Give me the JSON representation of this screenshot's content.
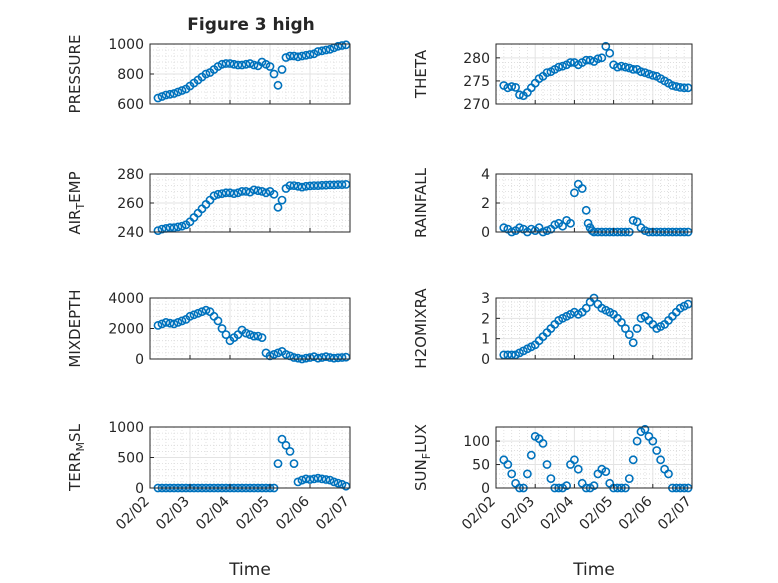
{
  "figure": {
    "title": "Figure 3 high",
    "xlabel": "Time",
    "x_ticks": [
      "02/02",
      "02/03",
      "02/04",
      "02/05",
      "02/06",
      "02/07"
    ],
    "marker_color": "#0072bd"
  },
  "chart_data": [
    {
      "type": "scatter",
      "ylabel": "PRESSURE",
      "ylim": [
        600,
        1000
      ],
      "yticks": [
        "600",
        "800",
        "1000"
      ],
      "xlim": [
        1,
        6
      ],
      "grid": true,
      "x": [
        1.2,
        1.3,
        1.4,
        1.5,
        1.6,
        1.7,
        1.8,
        1.9,
        2.0,
        2.1,
        2.2,
        2.3,
        2.4,
        2.5,
        2.6,
        2.7,
        2.8,
        2.9,
        3.0,
        3.1,
        3.2,
        3.3,
        3.4,
        3.5,
        3.6,
        3.7,
        3.8,
        3.9,
        4.0,
        4.1,
        4.2,
        4.3,
        4.4,
        4.5,
        4.6,
        4.7,
        4.8,
        4.9,
        5.0,
        5.1,
        5.2,
        5.3,
        5.4,
        5.5,
        5.6,
        5.7,
        5.8,
        5.9
      ],
      "y": [
        640,
        650,
        660,
        665,
        670,
        680,
        690,
        700,
        720,
        740,
        760,
        780,
        800,
        810,
        830,
        850,
        865,
        870,
        870,
        865,
        860,
        860,
        865,
        870,
        860,
        855,
        880,
        865,
        850,
        800,
        725,
        830,
        910,
        920,
        920,
        915,
        920,
        925,
        930,
        935,
        950,
        955,
        960,
        965,
        975,
        985,
        990,
        995
      ]
    },
    {
      "type": "scatter",
      "ylabel": "THETA",
      "ylim": [
        270,
        283
      ],
      "yticks": [
        "270",
        "275",
        "280"
      ],
      "xlim": [
        1,
        6
      ],
      "grid": true,
      "x": [
        1.2,
        1.3,
        1.4,
        1.5,
        1.6,
        1.7,
        1.8,
        1.9,
        2.0,
        2.1,
        2.2,
        2.3,
        2.4,
        2.5,
        2.6,
        2.7,
        2.8,
        2.9,
        3.0,
        3.1,
        3.2,
        3.3,
        3.4,
        3.5,
        3.6,
        3.7,
        3.8,
        3.9,
        4.0,
        4.1,
        4.2,
        4.3,
        4.4,
        4.5,
        4.6,
        4.7,
        4.8,
        4.9,
        5.0,
        5.1,
        5.2,
        5.3,
        5.4,
        5.5,
        5.6,
        5.7,
        5.8,
        5.9
      ],
      "y": [
        274,
        273.5,
        273.8,
        273.6,
        272,
        271.8,
        272.5,
        273.5,
        274.5,
        275.5,
        276,
        276.8,
        277,
        277.5,
        278,
        278.2,
        278.5,
        279,
        279,
        278.5,
        279,
        279.5,
        279.5,
        279.2,
        279.8,
        280,
        282.5,
        281,
        278.5,
        278,
        278.2,
        278,
        277.8,
        277.5,
        277.5,
        277,
        276.8,
        276.5,
        276.2,
        276,
        275.5,
        275,
        274.5,
        274,
        273.8,
        273.6,
        273.5,
        273.5
      ]
    },
    {
      "type": "scatter",
      "ylabel": "AIR_TEMP",
      "ylim": [
        240,
        280
      ],
      "yticks": [
        "240",
        "260",
        "280"
      ],
      "xlim": [
        1,
        6
      ],
      "grid": true,
      "x": [
        1.2,
        1.3,
        1.4,
        1.5,
        1.6,
        1.7,
        1.8,
        1.9,
        2.0,
        2.1,
        2.2,
        2.3,
        2.4,
        2.5,
        2.6,
        2.7,
        2.8,
        2.9,
        3.0,
        3.1,
        3.2,
        3.3,
        3.4,
        3.5,
        3.6,
        3.7,
        3.8,
        3.9,
        4.0,
        4.1,
        4.2,
        4.3,
        4.4,
        4.5,
        4.6,
        4.7,
        4.8,
        4.9,
        5.0,
        5.1,
        5.2,
        5.3,
        5.4,
        5.5,
        5.6,
        5.7,
        5.8,
        5.9
      ],
      "y": [
        241,
        242,
        242.5,
        243,
        243,
        243.5,
        244,
        245,
        247,
        250,
        253,
        256,
        259,
        262,
        265,
        266,
        266.5,
        267,
        267,
        266.5,
        267,
        268,
        268,
        267.5,
        269,
        268.5,
        268,
        267,
        268,
        266,
        257,
        262,
        270,
        272,
        272,
        271.5,
        271,
        271.5,
        271.8,
        272,
        272,
        272.2,
        272.3,
        272.5,
        272.5,
        272.6,
        272.7,
        272.8
      ]
    },
    {
      "type": "scatter",
      "ylabel": "RAINFALL",
      "ylim": [
        0,
        4
      ],
      "yticks": [
        "0",
        "2",
        "4"
      ],
      "xlim": [
        1,
        6
      ],
      "grid": true,
      "x": [
        1.2,
        1.3,
        1.4,
        1.5,
        1.6,
        1.7,
        1.8,
        1.9,
        2.0,
        2.1,
        2.2,
        2.3,
        2.4,
        2.5,
        2.6,
        2.7,
        2.8,
        2.9,
        3.0,
        3.1,
        3.2,
        3.3,
        3.35,
        3.4,
        3.45,
        3.5,
        3.6,
        3.7,
        3.8,
        3.9,
        4.0,
        4.1,
        4.2,
        4.3,
        4.4,
        4.5,
        4.6,
        4.7,
        4.8,
        4.9,
        5.0,
        5.1,
        5.2,
        5.3,
        5.4,
        5.5,
        5.6,
        5.7,
        5.8,
        5.9
      ],
      "y": [
        0.3,
        0.2,
        0,
        0.1,
        0.3,
        0.2,
        0,
        0.2,
        0.1,
        0.3,
        0,
        0.1,
        0.2,
        0.5,
        0.6,
        0.4,
        0.8,
        0.6,
        2.7,
        3.3,
        3.0,
        1.5,
        0.6,
        0.3,
        0.1,
        0,
        0,
        0,
        0,
        0,
        0,
        0,
        0,
        0,
        0,
        0.8,
        0.7,
        0.3,
        0.1,
        0,
        0,
        0,
        0,
        0,
        0,
        0,
        0,
        0,
        0,
        0
      ]
    },
    {
      "type": "scatter",
      "ylabel": "MIXDEPTH",
      "ylim": [
        0,
        4000
      ],
      "yticks": [
        "0",
        "2000",
        "4000"
      ],
      "xlim": [
        1,
        6
      ],
      "grid": true,
      "x": [
        1.2,
        1.3,
        1.4,
        1.5,
        1.6,
        1.7,
        1.8,
        1.9,
        2.0,
        2.1,
        2.2,
        2.3,
        2.4,
        2.5,
        2.6,
        2.7,
        2.8,
        2.9,
        3.0,
        3.1,
        3.2,
        3.3,
        3.4,
        3.5,
        3.6,
        3.7,
        3.8,
        3.9,
        4.0,
        4.1,
        4.2,
        4.3,
        4.4,
        4.5,
        4.6,
        4.7,
        4.8,
        4.9,
        5.0,
        5.1,
        5.2,
        5.3,
        5.4,
        5.5,
        5.6,
        5.7,
        5.8,
        5.9
      ],
      "y": [
        2200,
        2300,
        2400,
        2350,
        2300,
        2400,
        2500,
        2600,
        2800,
        2900,
        3000,
        3100,
        3200,
        3100,
        2800,
        2500,
        2000,
        1600,
        1200,
        1400,
        1600,
        1900,
        1700,
        1600,
        1500,
        1500,
        1400,
        400,
        200,
        300,
        400,
        500,
        300,
        200,
        100,
        50,
        0,
        50,
        100,
        150,
        50,
        100,
        150,
        100,
        50,
        80,
        100,
        120
      ]
    },
    {
      "type": "scatter",
      "ylabel": "H2OMIXRA",
      "ylim": [
        0,
        3
      ],
      "yticks": [
        "0",
        "1",
        "2",
        "3"
      ],
      "xlim": [
        1,
        6
      ],
      "grid": true,
      "x": [
        1.2,
        1.3,
        1.4,
        1.5,
        1.6,
        1.7,
        1.8,
        1.9,
        2.0,
        2.1,
        2.2,
        2.3,
        2.4,
        2.5,
        2.6,
        2.7,
        2.8,
        2.9,
        3.0,
        3.1,
        3.2,
        3.3,
        3.4,
        3.5,
        3.6,
        3.7,
        3.8,
        3.9,
        4.0,
        4.1,
        4.2,
        4.3,
        4.4,
        4.5,
        4.6,
        4.7,
        4.8,
        4.9,
        5.0,
        5.1,
        5.2,
        5.3,
        5.4,
        5.5,
        5.6,
        5.7,
        5.8,
        5.9
      ],
      "y": [
        0.2,
        0.2,
        0.2,
        0.2,
        0.3,
        0.4,
        0.5,
        0.6,
        0.7,
        0.9,
        1.1,
        1.3,
        1.5,
        1.7,
        1.9,
        2.0,
        2.1,
        2.2,
        2.3,
        2.2,
        2.3,
        2.5,
        2.8,
        3.0,
        2.7,
        2.5,
        2.4,
        2.3,
        2.2,
        2.0,
        1.8,
        1.5,
        1.2,
        0.8,
        1.5,
        2.0,
        2.1,
        1.9,
        1.7,
        1.5,
        1.6,
        1.7,
        1.9,
        2.1,
        2.3,
        2.5,
        2.6,
        2.7
      ]
    },
    {
      "type": "scatter",
      "ylabel": "TERR_MSL",
      "ylim": [
        0,
        1000
      ],
      "yticks": [
        "0",
        "500",
        "1000"
      ],
      "xlim": [
        1,
        6
      ],
      "grid": true,
      "x": [
        1.2,
        1.3,
        1.4,
        1.5,
        1.6,
        1.7,
        1.8,
        1.9,
        2.0,
        2.1,
        2.2,
        2.3,
        2.4,
        2.5,
        2.6,
        2.7,
        2.8,
        2.9,
        3.0,
        3.1,
        3.2,
        3.3,
        3.4,
        3.5,
        3.6,
        3.7,
        3.8,
        3.9,
        4.0,
        4.1,
        4.2,
        4.3,
        4.4,
        4.5,
        4.6,
        4.7,
        4.8,
        4.9,
        5.0,
        5.1,
        5.2,
        5.3,
        5.4,
        5.5,
        5.6,
        5.7,
        5.8,
        5.9
      ],
      "y": [
        0,
        0,
        0,
        0,
        0,
        0,
        0,
        0,
        0,
        0,
        0,
        0,
        0,
        0,
        0,
        0,
        0,
        0,
        0,
        0,
        0,
        0,
        0,
        0,
        0,
        0,
        0,
        0,
        0,
        0,
        400,
        800,
        700,
        600,
        400,
        100,
        130,
        150,
        140,
        150,
        160,
        150,
        140,
        130,
        100,
        80,
        60,
        30
      ]
    },
    {
      "type": "scatter",
      "ylabel": "SUN_FLUX",
      "ylim": [
        0,
        130
      ],
      "yticks": [
        "0",
        "50",
        "100"
      ],
      "xlim": [
        1,
        6
      ],
      "grid": true,
      "x": [
        1.2,
        1.3,
        1.4,
        1.5,
        1.6,
        1.7,
        1.8,
        1.9,
        2.0,
        2.1,
        2.2,
        2.3,
        2.4,
        2.5,
        2.6,
        2.7,
        2.8,
        2.9,
        3.0,
        3.1,
        3.2,
        3.3,
        3.4,
        3.5,
        3.6,
        3.7,
        3.8,
        3.9,
        4.0,
        4.1,
        4.2,
        4.3,
        4.4,
        4.5,
        4.6,
        4.7,
        4.8,
        4.9,
        5.0,
        5.1,
        5.2,
        5.3,
        5.4,
        5.5,
        5.6,
        5.7,
        5.8,
        5.9
      ],
      "y": [
        60,
        50,
        30,
        10,
        0,
        0,
        30,
        70,
        110,
        105,
        95,
        50,
        20,
        0,
        0,
        0,
        5,
        50,
        60,
        40,
        10,
        0,
        0,
        5,
        30,
        40,
        35,
        10,
        0,
        0,
        0,
        0,
        20,
        60,
        100,
        120,
        125,
        110,
        100,
        80,
        60,
        40,
        30,
        0,
        0,
        0,
        0,
        0
      ]
    }
  ]
}
